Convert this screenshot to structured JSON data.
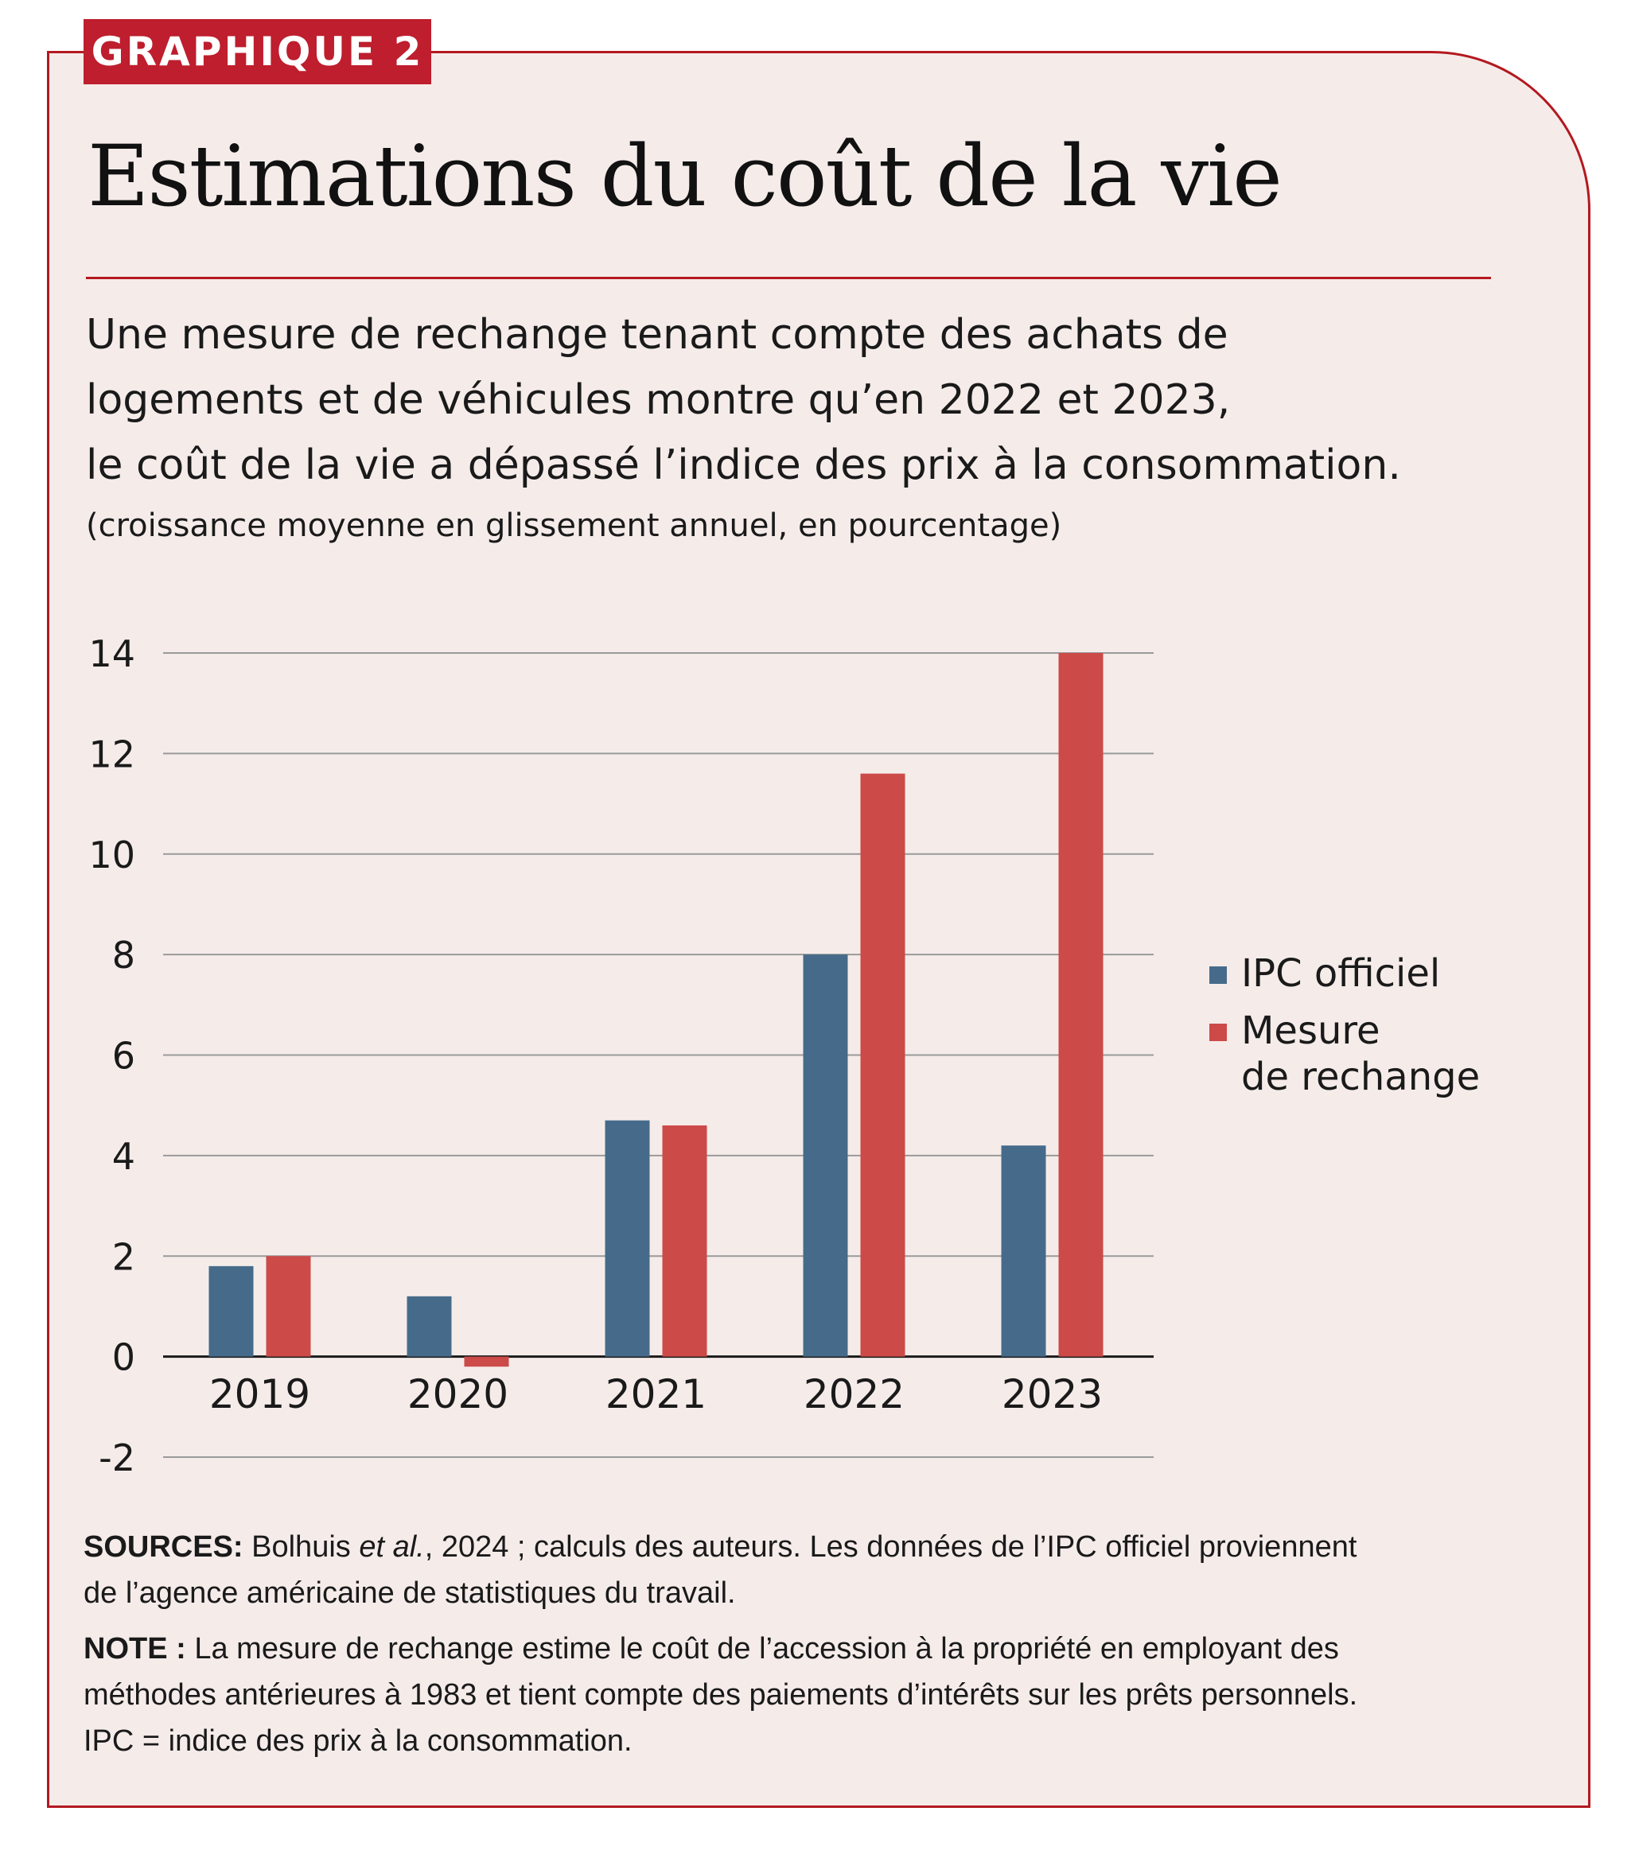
{
  "header": {
    "tag": "GRAPHIQUE 2",
    "title": "Estimations du coût de la vie",
    "subtitle_lines": [
      "Une mesure de rechange tenant compte des achats de",
      "logements et de véhicules montre qu’en 2022 et 2023,",
      "le coût de la vie a dépassé l’indice des prix à la consommation."
    ],
    "unit": "(croissance moyenne en glissement annuel, en pourcentage)"
  },
  "chart_data": {
    "type": "bar",
    "categories": [
      "2019",
      "2020",
      "2021",
      "2022",
      "2023"
    ],
    "series": [
      {
        "name": "IPC officiel",
        "values": [
          1.8,
          1.2,
          4.7,
          8.0,
          4.2
        ],
        "color": "#466b8a"
      },
      {
        "name": "Mesure de rechange",
        "legend_lines": [
          "Mesure",
          "de rechange"
        ],
        "values": [
          2.0,
          -0.2,
          4.6,
          11.6,
          14.0
        ],
        "color": "#cc4a48"
      }
    ],
    "ylim": [
      -2,
      14
    ],
    "yticks": [
      "14",
      "12",
      "10",
      "8",
      "6",
      "4",
      "2",
      "0",
      "-2"
    ],
    "grid": true,
    "legend": "right"
  },
  "notes": {
    "sources_label": "SOURCES:",
    "sources_author": " Bolhuis ",
    "sources_etal": "et al.",
    "sources_text1": ", 2024 ; calculs des auteurs. Les données de l’IPC officiel proviennent",
    "sources_text2": "de l’agence américaine de statistiques du travail.",
    "note_label": "NOTE :",
    "note_text1": " La mesure de rechange estime le coût de l’accession à la propriété en employant des",
    "note_text2": "méthodes antérieures à 1983 et tient compte des paiements d’intérêts sur les prêts personnels.",
    "note_text3": "IPC = indice des prix à la consommation."
  }
}
